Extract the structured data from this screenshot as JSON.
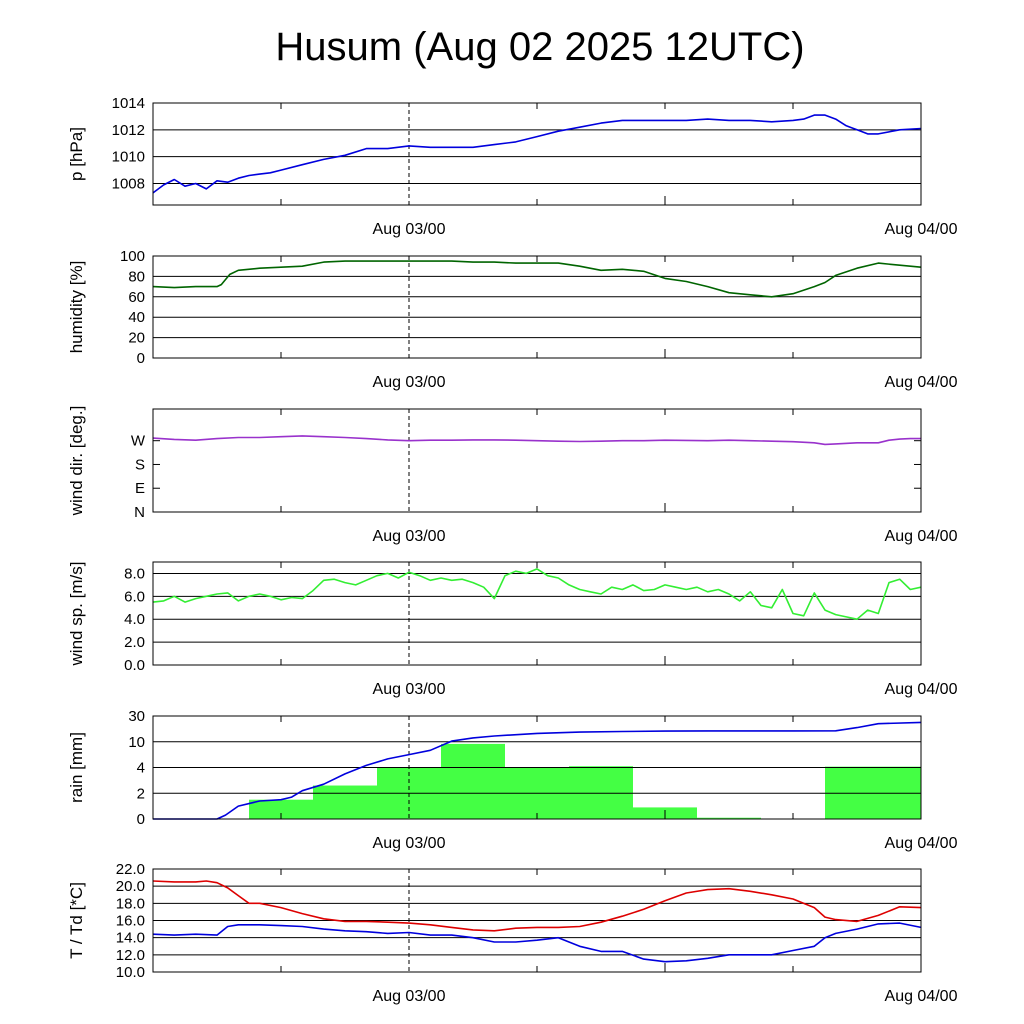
{
  "title": "Husum (Aug 02 2025 12UTC)",
  "chart_data": [
    {
      "type": "line",
      "ylabel": "p [hPa]",
      "ylim": [
        1006.4,
        1014
      ],
      "yticks": [
        1008,
        1010,
        1012,
        1014
      ],
      "ytick_labels": [
        "1008",
        "1010",
        "1012",
        "1014"
      ],
      "grid": true,
      "xlim": [
        0,
        36
      ],
      "x_unit": "hours after Aug 02 12UTC",
      "xtick_labels": [
        {
          "x": 12,
          "label": "Aug 03/00"
        },
        {
          "x": 36,
          "label": "Aug 04/00"
        }
      ],
      "series": [
        {
          "color": "#0000dd",
          "x": [
            0,
            0.5,
            1,
            1.5,
            2,
            2.5,
            3,
            3.5,
            4,
            4.5,
            5,
            5.5,
            6,
            7,
            8,
            9,
            10,
            11,
            12,
            13,
            14,
            15,
            16,
            17,
            18,
            19,
            20,
            21,
            22,
            23,
            24,
            25,
            26,
            27,
            28,
            29,
            30,
            30.5,
            31,
            31.5,
            32,
            32.5,
            33,
            33.5,
            34,
            35,
            36
          ],
          "values": [
            1007.3,
            1007.9,
            1008.3,
            1007.8,
            1008.0,
            1007.6,
            1008.2,
            1008.1,
            1008.4,
            1008.6,
            1008.7,
            1008.8,
            1009.0,
            1009.4,
            1009.8,
            1010.1,
            1010.6,
            1010.6,
            1010.8,
            1010.7,
            1010.7,
            1010.7,
            1010.9,
            1011.1,
            1011.5,
            1011.9,
            1012.2,
            1012.5,
            1012.7,
            1012.7,
            1012.7,
            1012.7,
            1012.8,
            1012.7,
            1012.7,
            1012.6,
            1012.7,
            1012.8,
            1013.1,
            1013.1,
            1012.8,
            1012.3,
            1012.0,
            1011.7,
            1011.7,
            1012.0,
            1012.1
          ]
        }
      ]
    },
    {
      "type": "line",
      "ylabel": "humidity [%]",
      "ylim": [
        0,
        100
      ],
      "yticks": [
        0,
        20,
        40,
        60,
        80,
        100
      ],
      "ytick_labels": [
        "0",
        "20",
        "40",
        "60",
        "80",
        "100"
      ],
      "grid": true,
      "xlim": [
        0,
        36
      ],
      "x_unit": "hours after Aug 02 12UTC",
      "xtick_labels": [
        {
          "x": 12,
          "label": "Aug 03/00"
        },
        {
          "x": 36,
          "label": "Aug 04/00"
        }
      ],
      "series": [
        {
          "color": "#006400",
          "x": [
            0,
            1,
            2,
            3,
            3.2,
            3.6,
            4,
            5,
            6,
            7,
            8,
            9,
            10,
            11,
            12,
            13,
            14,
            15,
            16,
            17,
            18,
            19,
            20,
            21,
            22,
            23,
            24,
            25,
            26,
            27,
            28,
            29,
            30,
            31,
            31.5,
            32,
            33,
            34,
            35,
            36
          ],
          "values": [
            70,
            69,
            70,
            70,
            72,
            82,
            86,
            88,
            89,
            90,
            94,
            95,
            95,
            95,
            95,
            95,
            95,
            94,
            94,
            93,
            93,
            93,
            90,
            86,
            87,
            85,
            78,
            75,
            70,
            64,
            62,
            60,
            63,
            70,
            74,
            81,
            88,
            93,
            91,
            89
          ]
        }
      ]
    },
    {
      "type": "line",
      "ylabel": "wind dir. [deg.]",
      "ylim": [
        0,
        390
      ],
      "yticks": [
        0,
        90,
        180,
        270
      ],
      "ytick_labels": [
        "N",
        "E",
        "S",
        "W"
      ],
      "grid": false,
      "xlim": [
        0,
        36
      ],
      "x_unit": "hours after Aug 02 12UTC",
      "xtick_labels": [
        {
          "x": 12,
          "label": "Aug 03/00"
        },
        {
          "x": 36,
          "label": "Aug 04/00"
        }
      ],
      "series": [
        {
          "color": "#9932cc",
          "x": [
            0,
            1,
            2,
            3,
            4,
            5,
            6,
            7,
            8,
            9,
            10,
            11,
            12,
            13,
            14,
            15,
            16,
            17,
            18,
            19,
            20,
            21,
            22,
            23,
            24,
            25,
            26,
            27,
            28,
            29,
            30,
            31,
            31.5,
            32,
            33,
            34,
            34.5,
            35,
            35.5,
            36
          ],
          "values": [
            280,
            275,
            272,
            278,
            282,
            282,
            285,
            288,
            285,
            282,
            278,
            273,
            270,
            272,
            272,
            273,
            273,
            272,
            270,
            268,
            267,
            268,
            270,
            270,
            272,
            271,
            270,
            272,
            270,
            268,
            266,
            262,
            256,
            258,
            262,
            262,
            272,
            276,
            278,
            278
          ]
        }
      ]
    },
    {
      "type": "line",
      "ylabel": "wind sp. [m/s]",
      "ylim": [
        0,
        9
      ],
      "yticks": [
        0,
        2,
        4,
        6,
        8
      ],
      "ytick_labels": [
        "0.0",
        "2.0",
        "4.0",
        "6.0",
        "8.0"
      ],
      "grid": true,
      "xlim": [
        0,
        36
      ],
      "x_unit": "hours after Aug 02 12UTC",
      "xtick_labels": [
        {
          "x": 12,
          "label": "Aug 03/00"
        },
        {
          "x": 36,
          "label": "Aug 04/00"
        }
      ],
      "series": [
        {
          "color": "#33ee33",
          "x": [
            0,
            0.5,
            1,
            1.5,
            2,
            2.5,
            3,
            3.5,
            4,
            4.5,
            5,
            5.5,
            6,
            6.5,
            7,
            7.5,
            8,
            8.5,
            9,
            9.5,
            10,
            10.5,
            11,
            11.5,
            12,
            12.5,
            13,
            13.5,
            14,
            14.5,
            15,
            15.5,
            16,
            16.5,
            17,
            17.5,
            18,
            18.5,
            19,
            19.5,
            20,
            20.5,
            21,
            21.5,
            22,
            22.5,
            23,
            23.5,
            24,
            24.5,
            25,
            25.5,
            26,
            26.5,
            27,
            27.5,
            28,
            28.5,
            29,
            29.5,
            30,
            30.5,
            31,
            31.5,
            32,
            32.5,
            33,
            33.5,
            34,
            34.5,
            35,
            35.5,
            36
          ],
          "values": [
            5.5,
            5.6,
            6.0,
            5.5,
            5.8,
            6.0,
            6.2,
            6.3,
            5.6,
            6.0,
            6.2,
            6.0,
            5.7,
            5.9,
            5.8,
            6.5,
            7.4,
            7.5,
            7.2,
            7.0,
            7.4,
            7.8,
            8.0,
            7.6,
            8.1,
            7.8,
            7.4,
            7.6,
            7.4,
            7.5,
            7.2,
            6.8,
            5.8,
            7.8,
            8.2,
            8.0,
            8.4,
            7.8,
            7.6,
            7.0,
            6.6,
            6.4,
            6.2,
            6.8,
            6.6,
            7.0,
            6.5,
            6.6,
            7.0,
            6.8,
            6.6,
            6.8,
            6.4,
            6.6,
            6.2,
            5.6,
            6.4,
            5.2,
            5.0,
            6.6,
            4.5,
            4.3,
            6.3,
            4.8,
            4.4,
            4.2,
            4.0,
            4.8,
            4.5,
            7.2,
            7.5,
            6.6,
            6.8
          ]
        }
      ]
    },
    {
      "type": "bar+line",
      "ylabel": "rain [mm]",
      "ylim": [
        0,
        30
      ],
      "yticks": [
        0,
        2,
        4,
        10,
        30
      ],
      "ytick_labels": [
        "0",
        "2",
        "4",
        "10",
        "30"
      ],
      "scale": "piecewise",
      "grid": true,
      "xlim": [
        0,
        36
      ],
      "x_unit": "hours after Aug 02 12UTC",
      "xtick_labels": [
        {
          "x": 12,
          "label": "Aug 03/00"
        },
        {
          "x": 36,
          "label": "Aug 04/00"
        }
      ],
      "bars": {
        "color": "#44ff44",
        "x_start": [
          4.5,
          7.5,
          10.5,
          13.5,
          16.5,
          19.5,
          22.5,
          25.5,
          28.5,
          31.5
        ],
        "x_end": [
          7.5,
          10.5,
          13.5,
          16.5,
          19.5,
          22.5,
          25.5,
          28.5,
          31.5,
          36
        ],
        "values": [
          1.5,
          2.6,
          4.0,
          9.5,
          4.0,
          4.3,
          0.9,
          0.1,
          0,
          4.2
        ]
      },
      "series": [
        {
          "color": "#0000dd",
          "x": [
            0,
            3,
            3.4,
            4,
            5,
            6,
            6.5,
            7,
            8,
            9,
            10,
            11,
            12,
            13,
            14,
            15,
            16,
            18,
            20,
            22,
            24,
            26,
            28,
            30,
            32,
            33,
            34,
            36
          ],
          "values": [
            0,
            0,
            0.3,
            1.0,
            1.4,
            1.5,
            1.7,
            2.2,
            2.7,
            3.5,
            4.5,
            6.0,
            7.0,
            8.0,
            10.5,
            13,
            14.5,
            16.5,
            17.5,
            18.0,
            18.3,
            18.4,
            18.4,
            18.4,
            18.5,
            21,
            24,
            25
          ]
        }
      ]
    },
    {
      "type": "line",
      "ylabel": "T / Td [*C]",
      "ylim": [
        10,
        22
      ],
      "yticks": [
        10,
        12,
        14,
        16,
        18,
        20,
        22
      ],
      "ytick_labels": [
        "10.0",
        "12.0",
        "14.0",
        "16.0",
        "18.0",
        "20.0",
        "22.0"
      ],
      "grid": true,
      "xlim": [
        0,
        36
      ],
      "x_unit": "hours after Aug 02 12UTC",
      "xtick_labels": [
        {
          "x": 12,
          "label": "Aug 03/00"
        },
        {
          "x": 36,
          "label": "Aug 04/00"
        }
      ],
      "series": [
        {
          "color": "#dd0000",
          "x": [
            0,
            1,
            2,
            2.5,
            3,
            3.5,
            4,
            4.5,
            5,
            6,
            7,
            8,
            9,
            10,
            11,
            12,
            13,
            14,
            15,
            16,
            17,
            18,
            19,
            20,
            21,
            22,
            23,
            24,
            25,
            26,
            27,
            28,
            29,
            30,
            31,
            31.5,
            32,
            33,
            34,
            35,
            36
          ],
          "values": [
            20.6,
            20.5,
            20.5,
            20.6,
            20.4,
            19.8,
            18.9,
            18.0,
            18.0,
            17.5,
            16.8,
            16.2,
            15.9,
            15.9,
            15.8,
            15.7,
            15.5,
            15.2,
            14.9,
            14.8,
            15.1,
            15.2,
            15.2,
            15.3,
            15.8,
            16.5,
            17.3,
            18.3,
            19.2,
            19.6,
            19.7,
            19.4,
            19.0,
            18.5,
            17.5,
            16.4,
            16.1,
            15.9,
            16.6,
            17.6,
            17.5
          ]
        },
        {
          "color": "#0000dd",
          "x": [
            0,
            1,
            2,
            3,
            3.5,
            4,
            5,
            6,
            7,
            8,
            9,
            10,
            11,
            12,
            13,
            14,
            15,
            16,
            17,
            18,
            19,
            20,
            21,
            22,
            23,
            24,
            25,
            26,
            27,
            28,
            29,
            30,
            31,
            31.5,
            32,
            33,
            34,
            35,
            36
          ],
          "values": [
            14.4,
            14.3,
            14.4,
            14.3,
            15.3,
            15.5,
            15.5,
            15.4,
            15.3,
            15.0,
            14.8,
            14.7,
            14.5,
            14.6,
            14.3,
            14.3,
            14.0,
            13.5,
            13.5,
            13.7,
            14.0,
            13.0,
            12.4,
            12.4,
            11.5,
            11.2,
            11.3,
            11.6,
            12.0,
            12.0,
            12.0,
            12.5,
            13.0,
            14.0,
            14.5,
            15.0,
            15.6,
            15.7,
            15.2
          ]
        }
      ]
    }
  ]
}
